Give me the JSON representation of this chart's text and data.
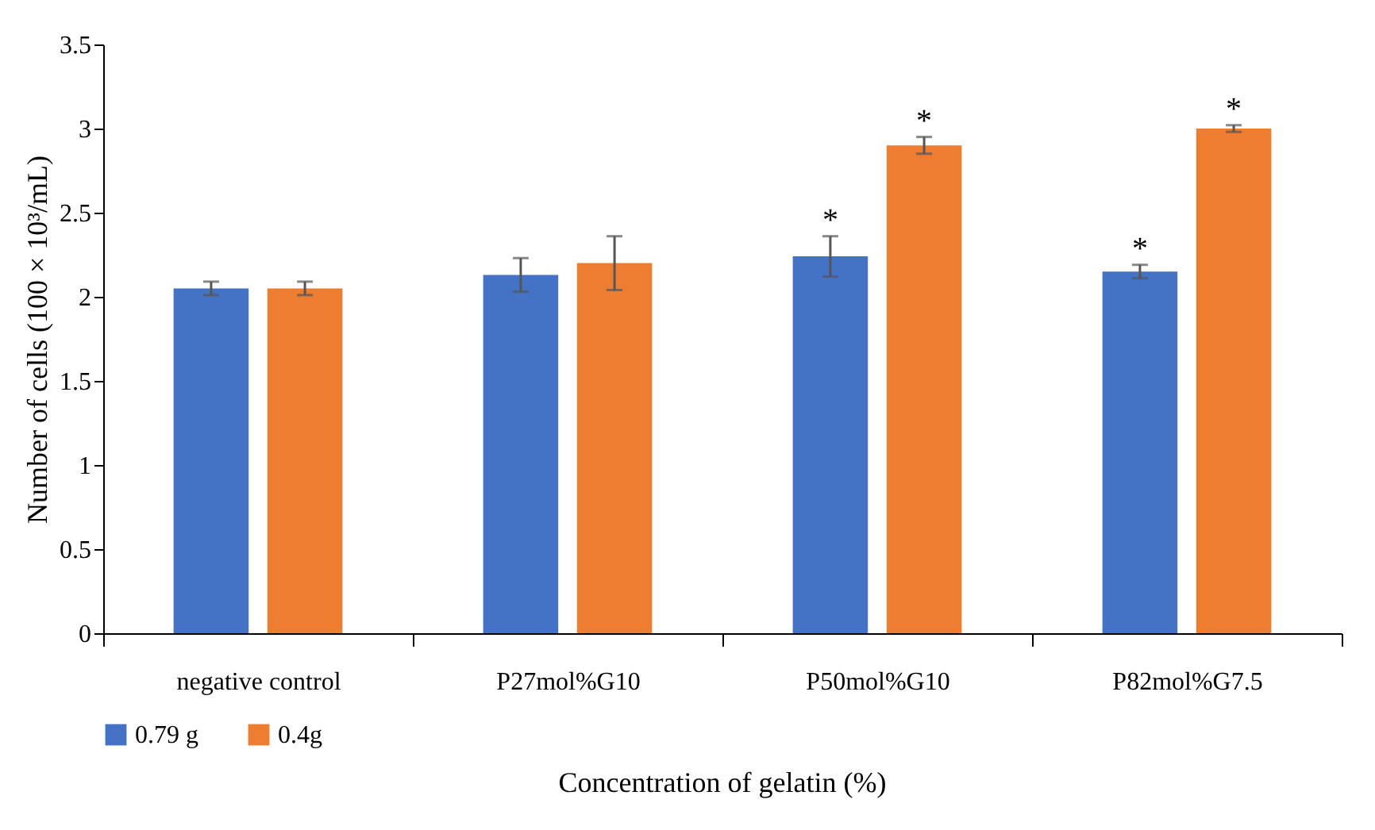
{
  "chart_data": {
    "type": "bar",
    "xlabel": "Concentration of gelatin (%)",
    "ylabel": "Number of cells (100 × 10³/mL)",
    "categories": [
      "negative control",
      "P27mol%G10",
      "P50mol%G10",
      "P82mol%G7.5"
    ],
    "series": [
      {
        "name": "0.79 g",
        "color": "#4472c4",
        "values": [
          2.05,
          2.13,
          2.24,
          2.15
        ],
        "errors": [
          0.04,
          0.1,
          0.12,
          0.04
        ],
        "value_labels": [
          null,
          null,
          "*",
          "*"
        ]
      },
      {
        "name": "0.4g",
        "color": "#ed7d31",
        "values": [
          2.05,
          2.2,
          2.9,
          3.0
        ],
        "errors": [
          0.04,
          0.16,
          0.05,
          0.02
        ],
        "value_labels": [
          null,
          null,
          "*",
          "*"
        ]
      }
    ],
    "ylim": [
      0,
      3.5
    ],
    "yticks": [
      0,
      0.5,
      1,
      1.5,
      2,
      2.5,
      3,
      3.5
    ],
    "grid": false,
    "legend": "bottom"
  }
}
